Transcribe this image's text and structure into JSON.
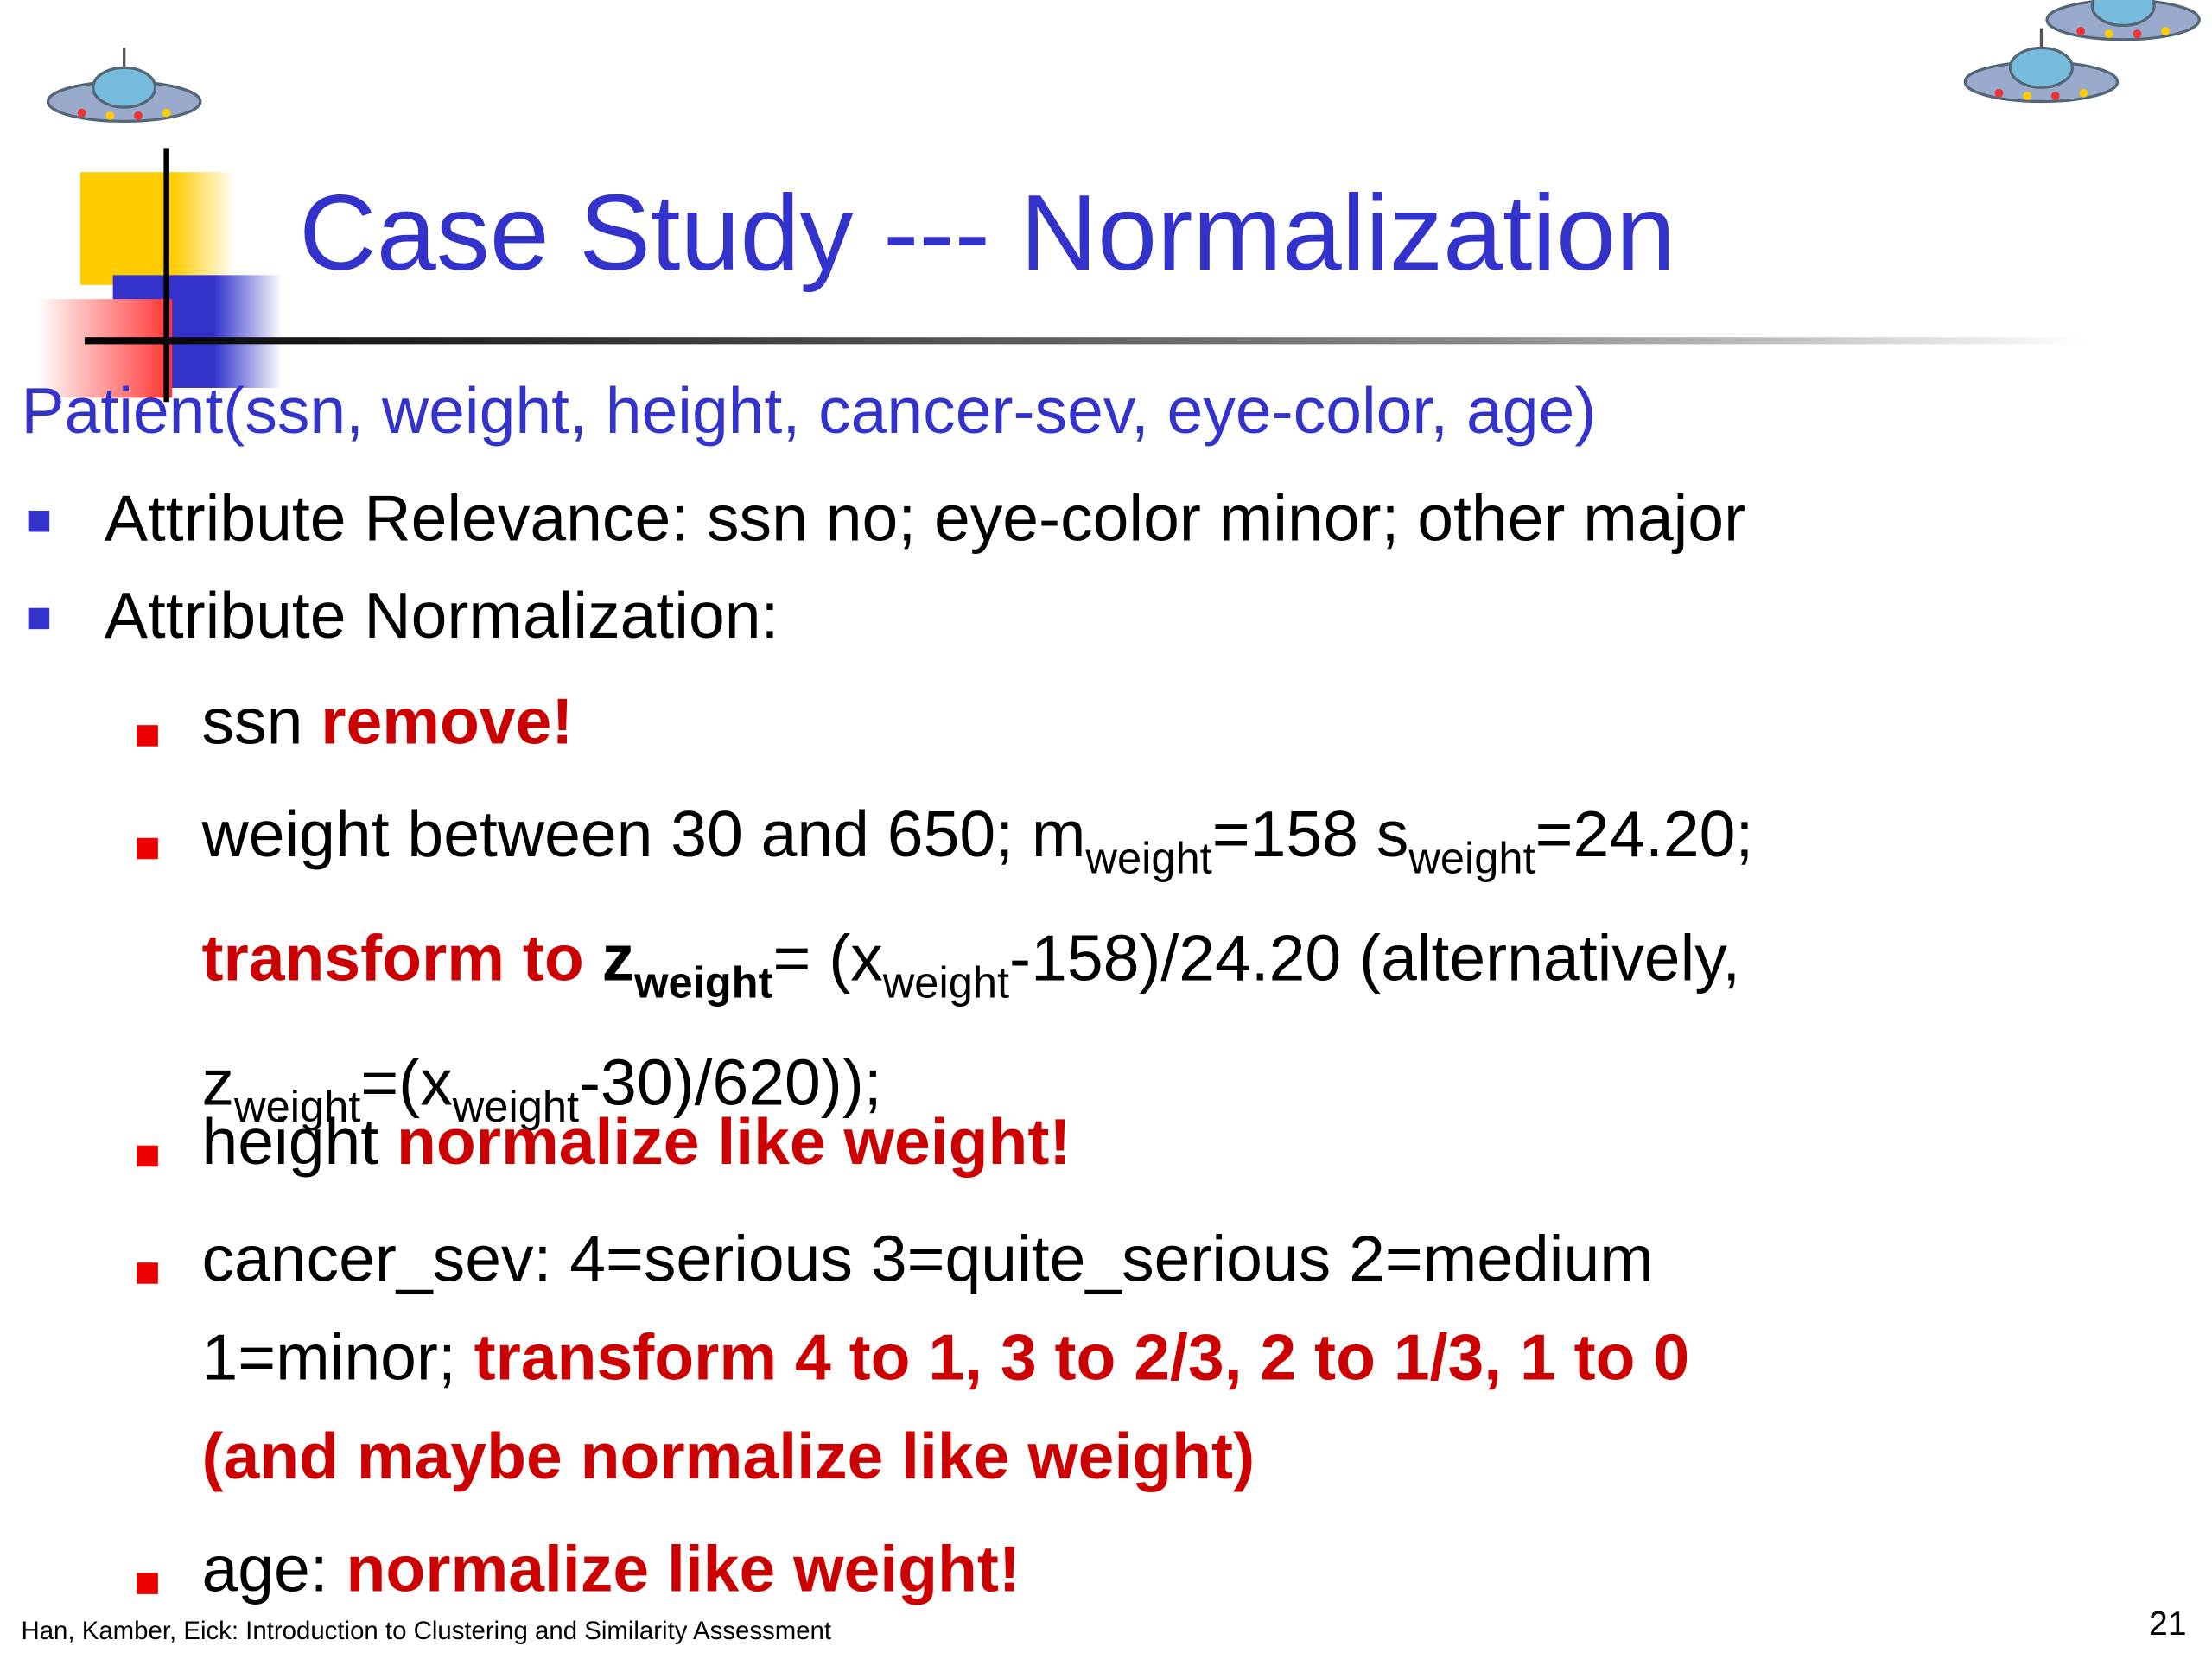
{
  "title": "Case Study --- Normalization",
  "subtitle": "Patient(ssn, weight, height, cancer-sev, eye-color, age)",
  "bullets": [
    {
      "lines": [
        [
          {
            "text": "Attribute Relevance: ssn no; eye-color minor; other major"
          }
        ]
      ]
    },
    {
      "lines": [
        [
          {
            "text": "Attribute Normalization:"
          }
        ]
      ],
      "items": [
        {
          "lines": [
            [
              {
                "text": "ssn "
              },
              {
                "text": "remove!",
                "style": "red"
              }
            ]
          ]
        },
        {
          "lines": [
            [
              {
                "text": "weight between 30 and 650; m"
              },
              {
                "text": "weight",
                "style": "sub"
              },
              {
                "text": "=158 s"
              },
              {
                "text": "weight",
                "style": "sub"
              },
              {
                "text": "=24.20;"
              }
            ],
            [
              {
                "text": "transform to ",
                "style": "red"
              },
              {
                "text": "z",
                "style": "bold"
              },
              {
                "text": "weight",
                "style": "bold-sub"
              },
              {
                "text": "= (x"
              },
              {
                "text": "weight",
                "style": "sub"
              },
              {
                "text": "-158)/24.20 (alternatively,"
              }
            ],
            [
              {
                "text": "z"
              },
              {
                "text": "weight",
                "style": "sub"
              },
              {
                "text": "=(x"
              },
              {
                "text": "weight",
                "style": "sub"
              },
              {
                "text": "-30)/620));"
              }
            ]
          ]
        },
        {
          "lines": [
            [
              {
                "text": "height "
              },
              {
                "text": "normalize like weight!",
                "style": "red"
              }
            ]
          ]
        },
        {
          "lines": [
            [
              {
                "text": "cancer_sev: 4=serious 3=quite_serious 2=medium"
              }
            ],
            [
              {
                "text": "1=minor; "
              },
              {
                "text": "transform 4 to 1, 3 to 2/3, 2 to 1/3, 1 to 0",
                "style": "red"
              }
            ],
            [
              {
                "text": "(and maybe normalize like weight)",
                "style": "red"
              }
            ]
          ]
        },
        {
          "lines": [
            [
              {
                "text": "age: "
              },
              {
                "text": "normalize like weight!",
                "style": "red"
              }
            ]
          ]
        }
      ]
    }
  ],
  "footer": {
    "left": "Han, Kamber, Eick: Introduction to Clustering and Similarity Assessment",
    "page": "21"
  }
}
